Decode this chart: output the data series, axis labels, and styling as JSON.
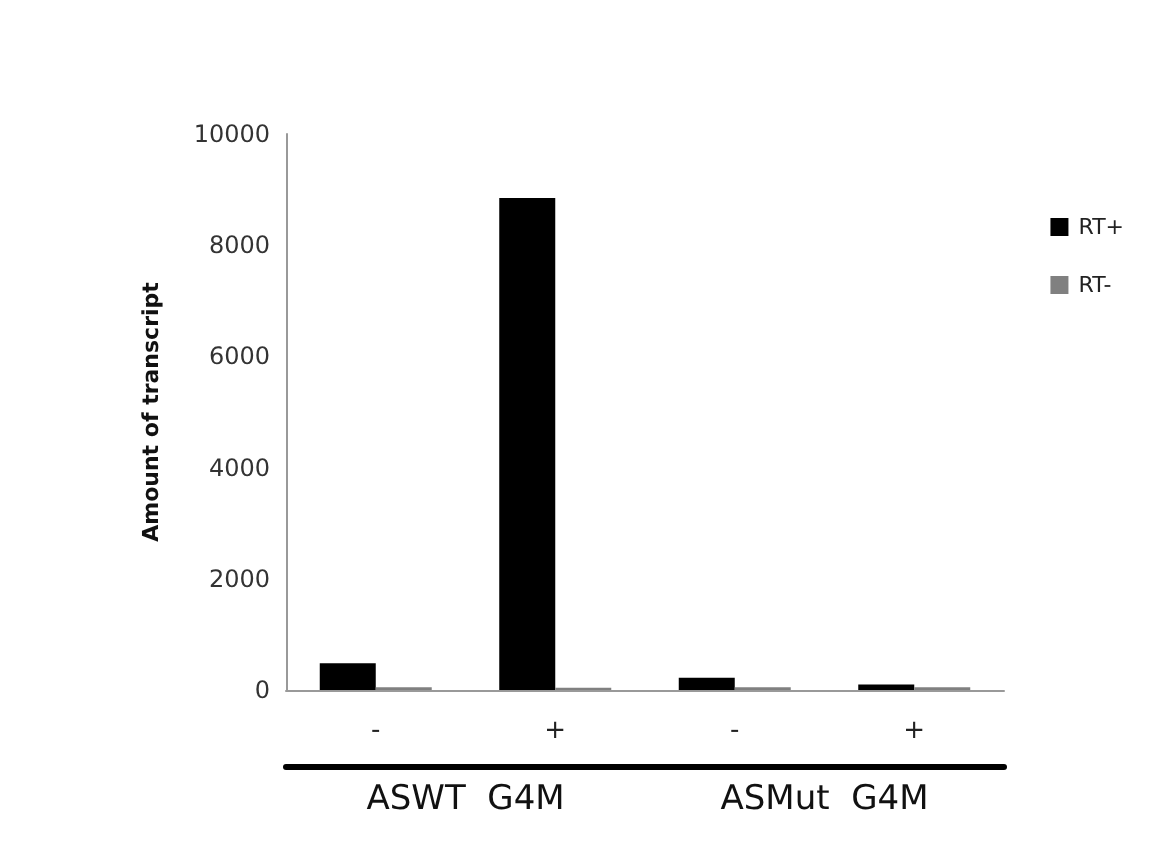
{
  "chart_data": {
    "type": "bar",
    "ylabel": "Amount of transcript",
    "categories": [
      "-",
      "+",
      "-",
      "+"
    ],
    "series": [
      {
        "name": "RT+",
        "color": "#000000",
        "values": [
          480,
          8850,
          220,
          100
        ]
      },
      {
        "name": "RT-",
        "color": "#808080",
        "values": [
          50,
          40,
          50,
          50
        ]
      }
    ],
    "ylim": [
      0,
      10000
    ],
    "yticks": [
      0,
      2000,
      4000,
      6000,
      8000,
      10000
    ],
    "grid": false,
    "legend": "right",
    "annotations": [
      "ASWT  G4M",
      "ASMut  G4M"
    ]
  }
}
